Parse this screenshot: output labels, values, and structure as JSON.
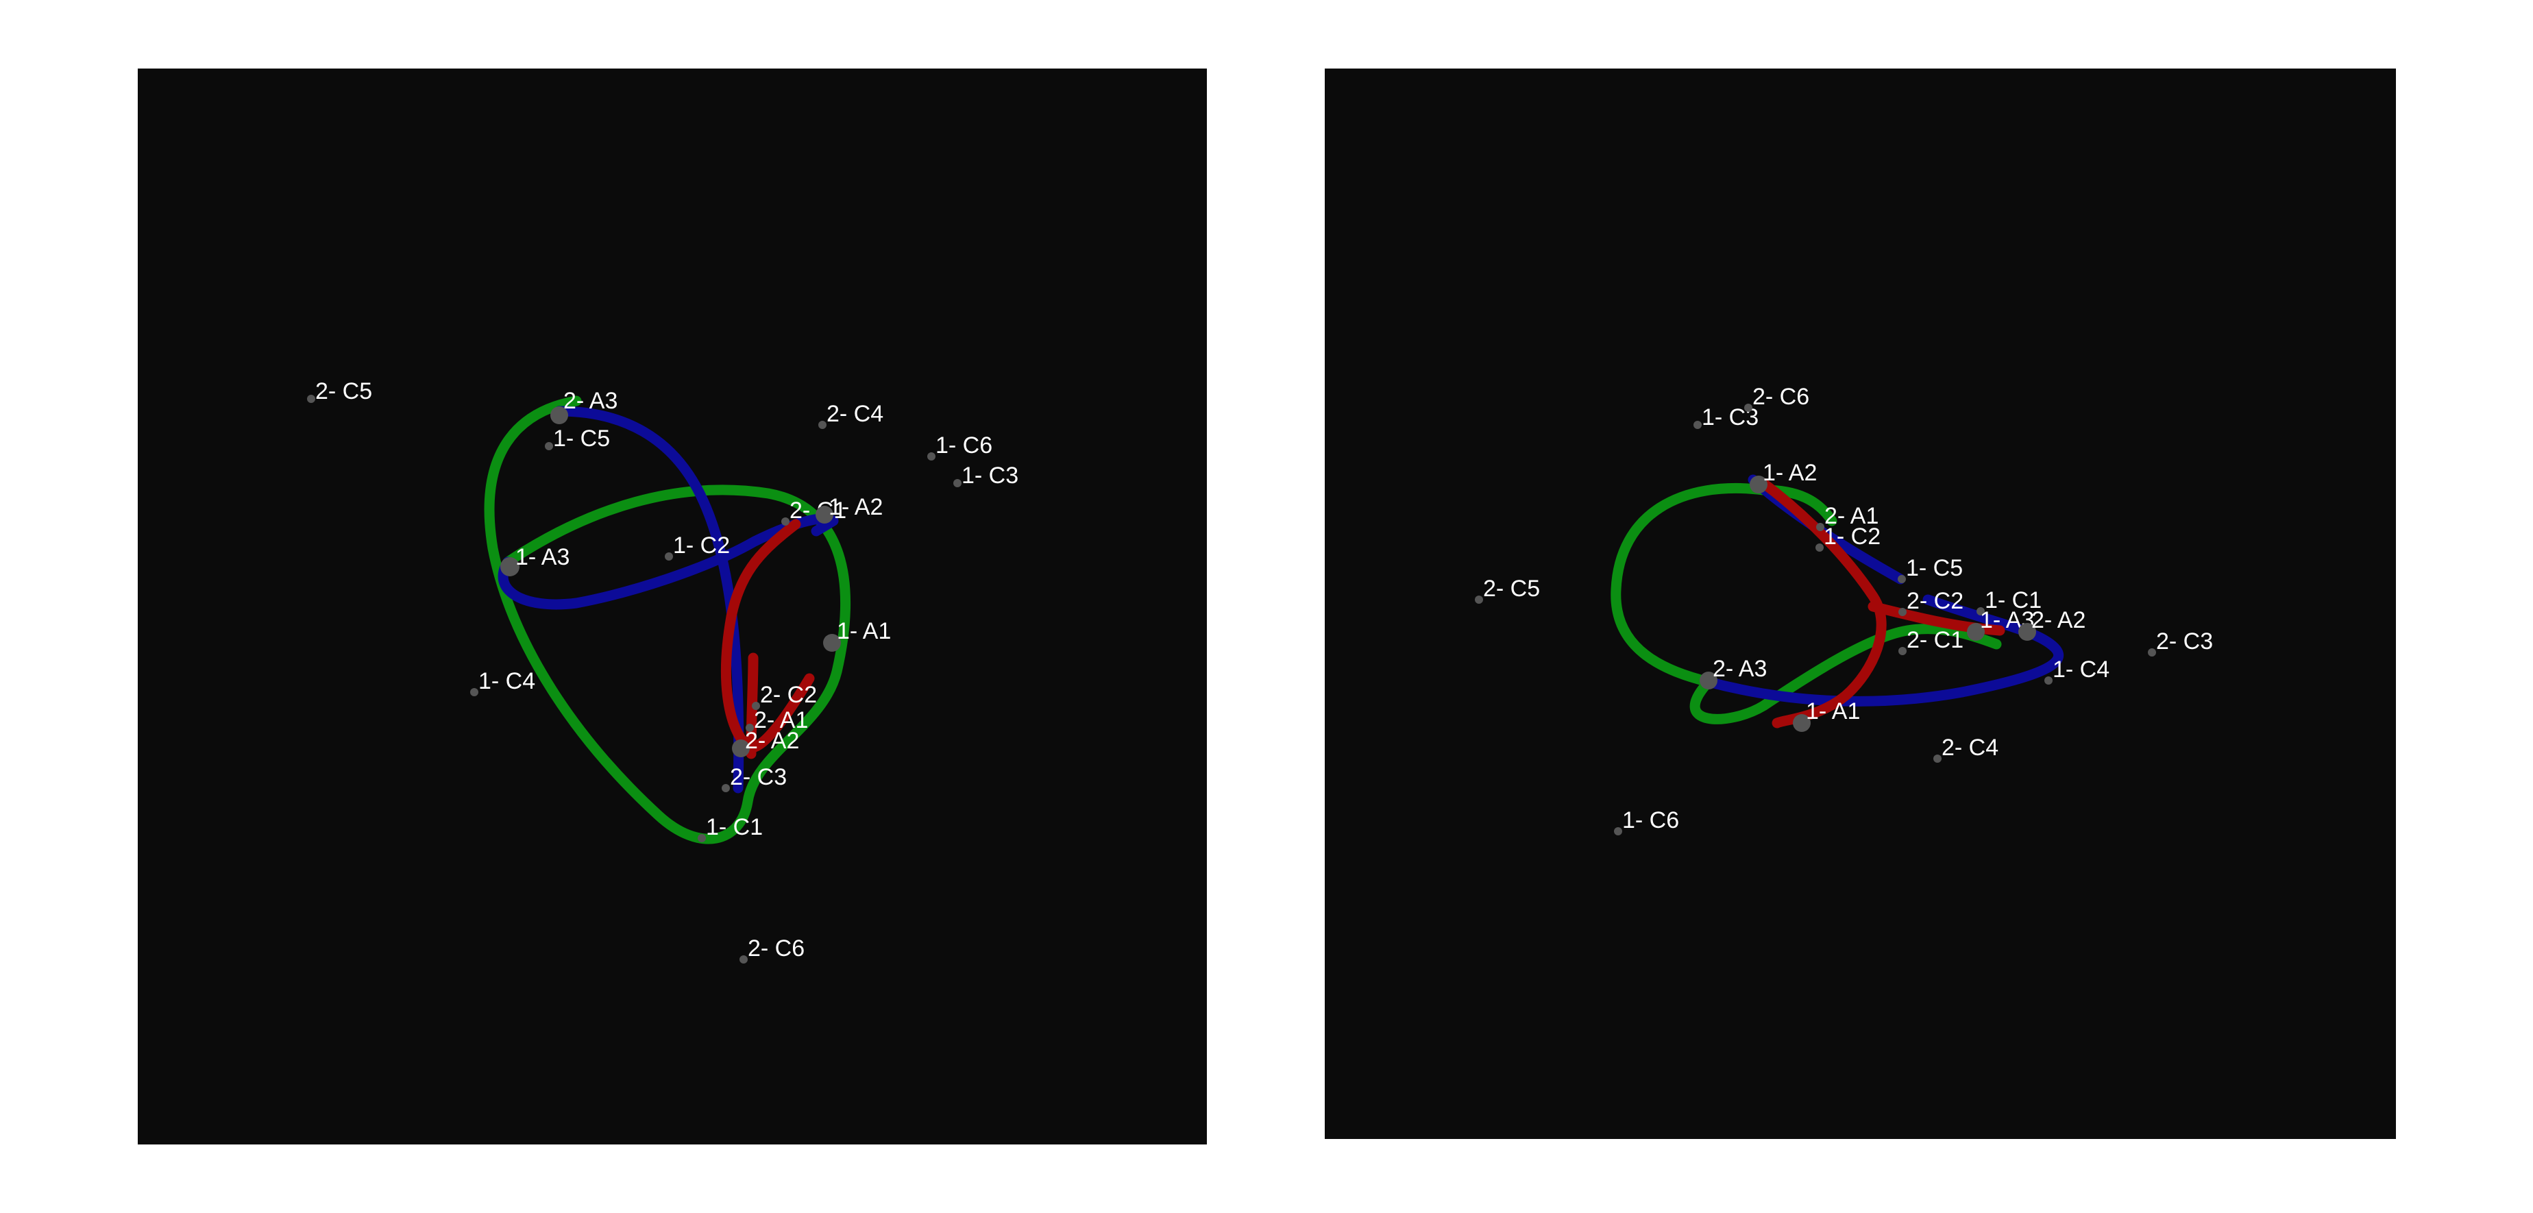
{
  "colors": {
    "background": "#ffffff",
    "panel": "#0b0b0b",
    "red": "#a40808",
    "green": "#0b8f12",
    "blue": "#0c0b98",
    "atom": "#555555",
    "label": "#ffffff"
  },
  "panels": [
    {
      "id": "left",
      "labels": [
        "2- C5",
        "2- A3",
        "1- C5",
        "2- C4",
        "1- C6",
        "1- C3",
        "2- C1",
        "1- A2",
        "1- A3",
        "1- C2",
        "1- A1",
        "1- C4",
        "2- C2",
        "2- A1",
        "2- A2",
        "2- C3",
        "1- C1",
        "2- C6"
      ]
    },
    {
      "id": "right",
      "labels": [
        "1- C3",
        "2- C6",
        "1- A2",
        "2- A1",
        "1- C2",
        "2- C5",
        "1- C5",
        "2- C2",
        "1- C1",
        "1- A3",
        "2- A2",
        "2- C1",
        "2- C3",
        "1- C4",
        "2- A3",
        "1- A1",
        "2- C4",
        "1- C6"
      ]
    }
  ]
}
